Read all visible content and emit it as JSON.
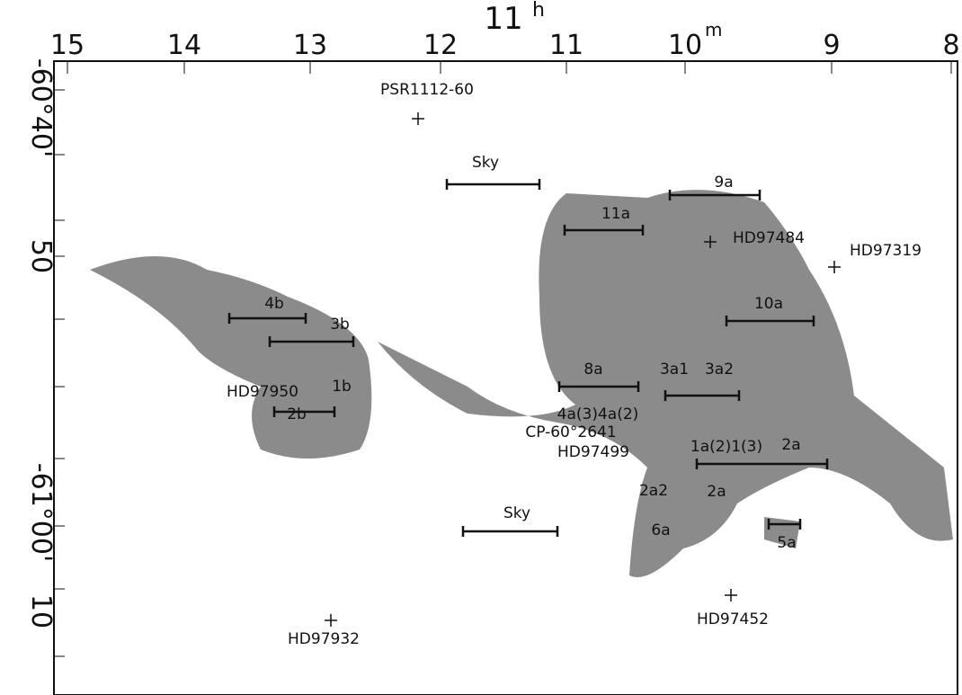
{
  "axes": {
    "top_title": "11",
    "top_title_unit": "h",
    "ra_ticks": [
      "15",
      "14",
      "13",
      "12",
      "11",
      "10",
      "9",
      "8"
    ],
    "ra_unit": "m",
    "dec_ticks": [
      "-60°40'",
      "50",
      "-61°00'",
      "10"
    ]
  },
  "annotations": [
    "PSR1112-60",
    "Sky",
    "9a",
    "11a",
    "HD97484",
    "HD97319",
    "4b",
    "3b",
    "10a",
    "8a",
    "3a1",
    "3a2",
    "HD97950",
    "1b",
    "2b",
    "4a(3)4a(2)",
    "CP-60°2641",
    "HD97499",
    "1a(2)1(3)",
    "2a",
    "2a2",
    "2a",
    "Sky",
    "6a",
    "5a",
    "HD97452",
    "HD97932"
  ]
}
